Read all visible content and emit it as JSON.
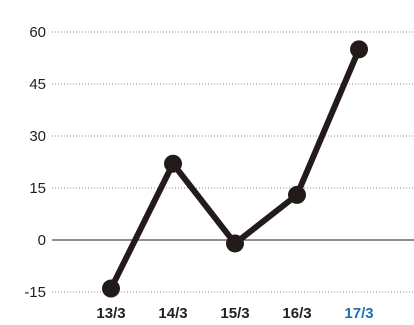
{
  "chart_data": {
    "type": "line",
    "title": "",
    "xlabel": "",
    "ylabel": "",
    "categories": [
      "13/3",
      "14/3",
      "15/3",
      "16/3",
      "17/3"
    ],
    "highlighted_category": "17/3",
    "series": [
      {
        "values": [
          -14,
          22,
          -1,
          13,
          55
        ]
      }
    ],
    "yticks": [
      "60",
      "45",
      "30",
      "15",
      "0",
      "-15"
    ],
    "ylim": [
      -15,
      60
    ],
    "grid": "dotted horizontal",
    "zero_line": "solid",
    "colors": {
      "line": "#231a1a",
      "marker": "#231a1a",
      "grid": "#888888",
      "axis": "#222222",
      "tick_text": "#222222",
      "highlight_text": "#1f6fb5"
    }
  }
}
